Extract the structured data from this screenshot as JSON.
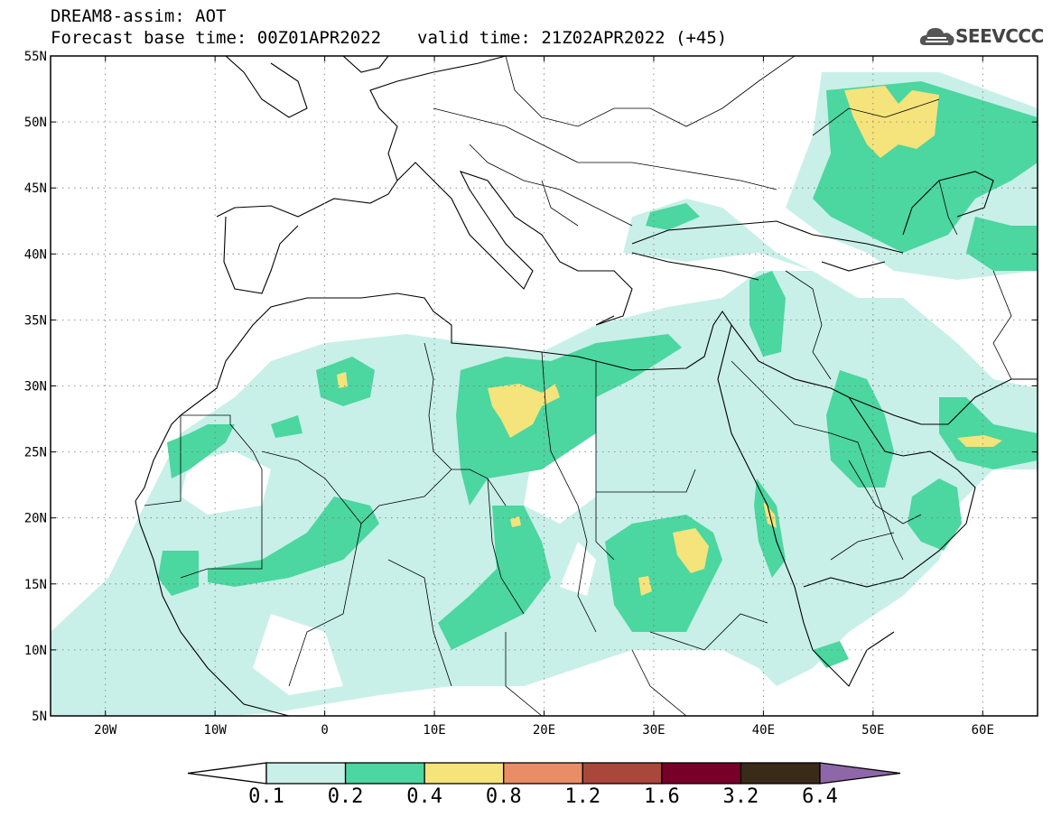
{
  "header": {
    "line1": "DREAM8-assim: AOT",
    "base_time": "Forecast base time: 00Z01APR2022",
    "valid_time": "valid time: 21Z02APR2022 (+45)"
  },
  "logo": {
    "text": "SEEVCCC",
    "icon": "cloud-icon"
  },
  "map": {
    "lon_range": [
      -25,
      65
    ],
    "lat_range": [
      5,
      55
    ],
    "lon_ticks": [
      {
        "value": -20,
        "label": "20W"
      },
      {
        "value": -10,
        "label": "10W"
      },
      {
        "value": 0,
        "label": "0"
      },
      {
        "value": 10,
        "label": "10E"
      },
      {
        "value": 20,
        "label": "20E"
      },
      {
        "value": 30,
        "label": "30E"
      },
      {
        "value": 40,
        "label": "40E"
      },
      {
        "value": 50,
        "label": "50E"
      },
      {
        "value": 60,
        "label": "60E"
      }
    ],
    "lat_ticks": [
      {
        "value": 55,
        "label": "55N"
      },
      {
        "value": 50,
        "label": "50N"
      },
      {
        "value": 45,
        "label": "45N"
      },
      {
        "value": 40,
        "label": "40N"
      },
      {
        "value": 35,
        "label": "35N"
      },
      {
        "value": 30,
        "label": "30N"
      },
      {
        "value": 25,
        "label": "25N"
      },
      {
        "value": 20,
        "label": "20N"
      },
      {
        "value": 15,
        "label": "15N"
      },
      {
        "value": 10,
        "label": "10N"
      },
      {
        "value": 5,
        "label": "5N"
      }
    ],
    "grid": "dotted"
  },
  "colorbar": {
    "colors": [
      "#ffffff",
      "#c8f0e8",
      "#4cd6a0",
      "#f5e37c",
      "#e88d65",
      "#a9473a",
      "#770028",
      "#3a2a18",
      "#8e67a8"
    ],
    "labels": [
      "0.1",
      "0.2",
      "0.4",
      "0.8",
      "1.2",
      "1.6",
      "3.2",
      "6.4"
    ]
  }
}
